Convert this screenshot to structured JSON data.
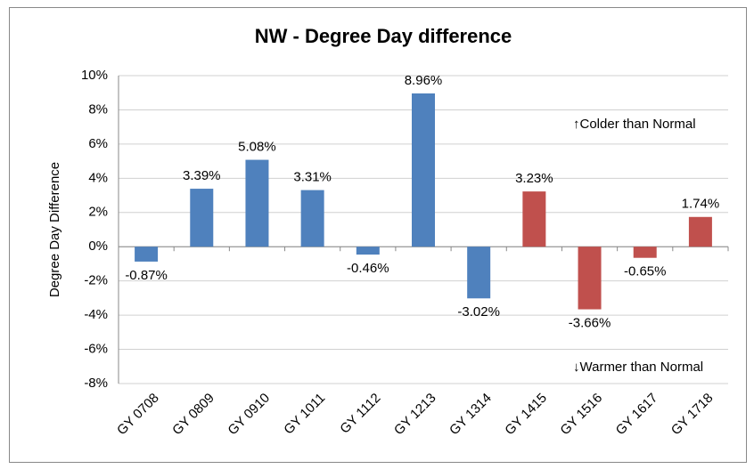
{
  "chart_data": {
    "type": "bar",
    "title": "NW - Degree Day difference",
    "y_axis_label": "Degree Day Difference",
    "categories": [
      "GY 0708",
      "GY 0809",
      "GY 0910",
      "GY 1011",
      "GY 1112",
      "GY 1213",
      "GY 1314",
      "GY 1415",
      "GY 1516",
      "GY 1617",
      "GY 1718"
    ],
    "values": [
      -0.87,
      3.39,
      5.08,
      3.31,
      -0.46,
      8.96,
      -3.02,
      3.23,
      -3.66,
      -0.65,
      1.74
    ],
    "value_labels": [
      "-0.87%",
      "3.39%",
      "5.08%",
      "3.31%",
      "-0.46%",
      "8.96%",
      "-3.02%",
      "3.23%",
      "-3.66%",
      "-0.65%",
      "1.74%"
    ],
    "colors": [
      "#4f81bd",
      "#4f81bd",
      "#4f81bd",
      "#4f81bd",
      "#4f81bd",
      "#4f81bd",
      "#4f81bd",
      "#c0504d",
      "#c0504d",
      "#c0504d",
      "#c0504d"
    ],
    "annotations": [
      "↑Colder than Normal",
      "↓Warmer than Normal"
    ],
    "ylim": [
      -8,
      10
    ],
    "yticks": [
      {
        "value": -8,
        "label": "-8%"
      },
      {
        "value": -6,
        "label": "-6%"
      },
      {
        "value": -4,
        "label": "-4%"
      },
      {
        "value": -2,
        "label": "-2%"
      },
      {
        "value": 0,
        "label": "0%"
      },
      {
        "value": 2,
        "label": "2%"
      },
      {
        "value": 4,
        "label": "4%"
      },
      {
        "value": 6,
        "label": "6%"
      },
      {
        "value": 8,
        "label": "8%"
      },
      {
        "value": 10,
        "label": "10%"
      }
    ],
    "grid": true
  }
}
